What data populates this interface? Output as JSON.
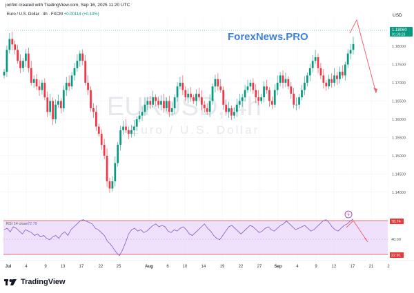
{
  "header": {
    "credit": "jonfint created with TradingView.com, Sep 16, 2025 11:20 UTC",
    "symbol_desc": "Euro / U.S. Dollar · 4h · FXCM",
    "change": "+0.00114 (+0.10%)",
    "currency": "USD"
  },
  "brand": "ForexNews.PRO",
  "footer_logo": "TradingView",
  "colors": {
    "up": "#089981",
    "down": "#f23645",
    "rsi_line": "#7e57c2",
    "rsi_band": "#e9d5fb",
    "rsi_limit_line": "#e83b3b",
    "arrow": "#f06272",
    "brand": "#3d7fe0"
  },
  "chart_data": [
    {
      "type": "candlestick",
      "watermark_symbol": "EURUSD, 4h",
      "watermark_desc": "Euro / U.S. Dollar",
      "y_ticks": [
        "1.18000",
        "1.17500",
        "1.17000",
        "1.16500",
        "1.16000",
        "1.15500",
        "1.15000",
        "1.14500",
        "1.14000"
      ],
      "ylim": [
        1.136,
        1.187
      ],
      "x_ticks": [
        "Jul",
        "4",
        "9",
        "13",
        "17",
        "22",
        "25",
        "Aug",
        "6",
        "10",
        "14",
        "19",
        "22",
        "27",
        "Sep",
        "4",
        "9",
        "12",
        "17",
        "21",
        "2"
      ],
      "last_price": "1.18060",
      "countdown": "01:39:23",
      "projection_arrow": [
        "1.1850 peak",
        "1.1650 target"
      ],
      "close_path": [
        1.173,
        1.179,
        1.182,
        1.1805,
        1.179,
        1.176,
        1.174,
        1.176,
        1.178,
        1.174,
        1.17,
        1.171,
        1.169,
        1.168,
        1.17,
        1.166,
        1.162,
        1.165,
        1.16,
        1.164,
        1.165,
        1.163,
        1.168,
        1.17,
        1.169,
        1.172,
        1.174,
        1.176,
        1.178,
        1.176,
        1.17,
        1.168,
        1.163,
        1.162,
        1.158,
        1.156,
        1.153,
        1.15,
        1.143,
        1.141,
        1.143,
        1.148,
        1.153,
        1.157,
        1.158,
        1.157,
        1.156,
        1.157,
        1.158,
        1.16,
        1.161,
        1.162,
        1.164,
        1.165,
        1.164,
        1.166,
        1.165,
        1.164,
        1.165,
        1.163,
        1.165,
        1.162,
        1.163,
        1.166,
        1.169,
        1.17,
        1.168,
        1.166,
        1.167,
        1.166,
        1.165,
        1.167,
        1.166,
        1.164,
        1.163,
        1.162,
        1.165,
        1.169,
        1.171,
        1.169,
        1.168,
        1.164,
        1.162,
        1.163,
        1.161,
        1.162,
        1.164,
        1.165,
        1.166,
        1.168,
        1.169,
        1.17,
        1.168,
        1.166,
        1.165,
        1.166,
        1.169,
        1.168,
        1.165,
        1.164,
        1.168,
        1.17,
        1.172,
        1.17,
        1.171,
        1.169,
        1.167,
        1.164,
        1.164,
        1.166,
        1.168,
        1.17,
        1.172,
        1.174,
        1.176,
        1.177,
        1.174,
        1.172,
        1.17,
        1.169,
        1.171,
        1.17,
        1.172,
        1.171,
        1.173,
        1.172,
        1.175,
        1.178,
        1.179,
        1.1806
      ]
    },
    {
      "type": "line",
      "label": "RSI 14 close",
      "value": "72.79",
      "level_labels": [
        "78.74",
        "40.00",
        "22.91"
      ],
      "ylim": [
        15,
        85
      ],
      "values": [
        58,
        60,
        55,
        62,
        60,
        56,
        52,
        58,
        56,
        54,
        50,
        52,
        48,
        50,
        46,
        44,
        48,
        50,
        46,
        52,
        55,
        50,
        58,
        62,
        66,
        70,
        72,
        70,
        68,
        66,
        60,
        58,
        54,
        50,
        42,
        38,
        32,
        26,
        22,
        30,
        40,
        52,
        58,
        60,
        56,
        58,
        54,
        56,
        60,
        64,
        66,
        62,
        64,
        62,
        56,
        54,
        58,
        56,
        60,
        62,
        58,
        52,
        50,
        54,
        58,
        62,
        66,
        60,
        56,
        50,
        46,
        44,
        50,
        56,
        62,
        64,
        60,
        56,
        52,
        56,
        60,
        64,
        62,
        58,
        54,
        56,
        60,
        62,
        58,
        56,
        60,
        64,
        66,
        70,
        66,
        62,
        58,
        60,
        62,
        64,
        60,
        56,
        58,
        62,
        66,
        70,
        72,
        68,
        62,
        58,
        56,
        60,
        64,
        66,
        70,
        72.79
      ]
    }
  ]
}
